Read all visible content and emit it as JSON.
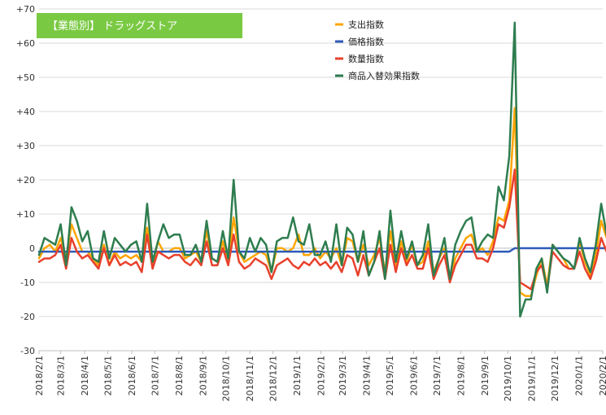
{
  "chart_data": {
    "type": "line",
    "title": "【業態別】 ドラッグストア",
    "xlabel": "",
    "ylabel": "",
    "ylim": [
      -30,
      70
    ],
    "yticks": [
      -30,
      -20,
      -10,
      0,
      10,
      20,
      30,
      40,
      50,
      60,
      70
    ],
    "ytick_labels": [
      "-30",
      "-20",
      "-10",
      "0",
      "+10",
      "+20",
      "+30",
      "+40",
      "+50",
      "+60",
      "+70"
    ],
    "grid": true,
    "legend_position": "top-center",
    "x_tick_labels": [
      "2018/2/1",
      "2018/3/1",
      "2018/4/1",
      "2018/5/1",
      "2018/6/1",
      "2018/7/1",
      "2018/8/1",
      "2018/9/1",
      "2018/10/1",
      "2018/11/1",
      "2018/12/1",
      "2019/1/1",
      "2019/2/1",
      "2019/3/1",
      "2019/4/1",
      "2019/5/1",
      "2019/6/1",
      "2019/7/1",
      "2019/8/1",
      "2019/9/1",
      "2019/10/1",
      "2019/11/1",
      "2019/12/1",
      "2020/1/1",
      "2020/2/1"
    ],
    "x_dates": [
      "2018/2/1",
      "2018/2/8",
      "2018/2/15",
      "2018/2/22",
      "2018/3/1",
      "2018/3/8",
      "2018/3/15",
      "2018/3/22",
      "2018/3/29",
      "2018/4/5",
      "2018/4/12",
      "2018/4/19",
      "2018/4/26",
      "2018/5/3",
      "2018/5/10",
      "2018/5/17",
      "2018/5/24",
      "2018/5/31",
      "2018/6/7",
      "2018/6/14",
      "2018/6/21",
      "2018/6/28",
      "2018/7/5",
      "2018/7/12",
      "2018/7/19",
      "2018/7/26",
      "2018/8/2",
      "2018/8/9",
      "2018/8/16",
      "2018/8/23",
      "2018/8/30",
      "2018/9/6",
      "2018/9/13",
      "2018/9/20",
      "2018/9/27",
      "2018/10/4",
      "2018/10/11",
      "2018/10/18",
      "2018/10/25",
      "2018/11/1",
      "2018/11/8",
      "2018/11/15",
      "2018/11/22",
      "2018/11/29",
      "2018/12/6",
      "2018/12/13",
      "2018/12/20",
      "2018/12/27",
      "2019/1/3",
      "2019/1/10",
      "2019/1/17",
      "2019/1/24",
      "2019/1/31",
      "2019/2/7",
      "2019/2/14",
      "2019/2/21",
      "2019/2/28",
      "2019/3/7",
      "2019/3/14",
      "2019/3/21",
      "2019/3/28",
      "2019/4/4",
      "2019/4/11",
      "2019/4/18",
      "2019/4/25",
      "2019/5/2",
      "2019/5/9",
      "2019/5/16",
      "2019/5/23",
      "2019/5/30",
      "2019/6/6",
      "2019/6/13",
      "2019/6/20",
      "2019/6/27",
      "2019/7/4",
      "2019/7/11",
      "2019/7/18",
      "2019/7/25",
      "2019/8/1",
      "2019/8/8",
      "2019/8/15",
      "2019/8/22",
      "2019/8/29",
      "2019/9/5",
      "2019/9/12",
      "2019/9/19",
      "2019/9/26",
      "2019/10/3",
      "2019/10/10",
      "2019/10/17",
      "2019/10/24",
      "2019/10/31",
      "2019/11/7",
      "2019/11/14",
      "2019/11/21",
      "2019/11/28",
      "2019/12/5",
      "2019/12/12",
      "2019/12/19",
      "2019/12/26",
      "2020/1/2",
      "2020/1/9",
      "2020/1/16",
      "2020/1/23",
      "2020/1/30",
      "2020/2/6"
    ],
    "series": [
      {
        "name": "支出指数",
        "color": "#FFA500",
        "values": [
          -3,
          0,
          1,
          -1,
          3,
          -3,
          7,
          3,
          -1,
          -1,
          -3,
          -5,
          1,
          -5,
          -1,
          -3,
          -2,
          -3,
          -2,
          -4,
          6,
          -5,
          2,
          -1,
          -1,
          0,
          0,
          -3,
          -2,
          -1,
          -4,
          5,
          -3,
          -4,
          2,
          -4,
          9,
          -1,
          -4,
          -3,
          -2,
          -1,
          -2,
          -7,
          0,
          0,
          -1,
          0,
          4,
          -2,
          -2,
          0,
          -3,
          -1,
          -3,
          0,
          -5,
          3,
          2,
          -4,
          1,
          -5,
          -2,
          3,
          -7,
          5,
          -5,
          2,
          -4,
          1,
          -5,
          -4,
          2,
          -7,
          -3,
          0,
          -9,
          -3,
          0,
          3,
          4,
          -1,
          0,
          -2,
          2,
          9,
          8,
          14,
          41,
          -13,
          -14,
          -14,
          -8,
          -3,
          -11,
          1,
          -1,
          -3,
          -6,
          -6,
          2,
          -4,
          -8,
          -2,
          8,
          3
        ]
      },
      {
        "name": "価格指数",
        "color": "#2E5BB8",
        "values": [
          -1,
          -1,
          -1,
          -1,
          -1,
          -1,
          -1,
          -1,
          -1,
          -1,
          -1,
          -1,
          -1,
          -1,
          -1,
          -1,
          -1,
          -1,
          -1,
          -1,
          -1,
          -1,
          -1,
          -1,
          -1,
          -1,
          -1,
          -1,
          -1,
          -1,
          -1,
          -1,
          -1,
          -1,
          -1,
          -1,
          -1,
          -1,
          -1,
          -1,
          -1,
          -1,
          -1,
          -1,
          -1,
          -1,
          -1,
          -1,
          -1,
          -1,
          -1,
          -1,
          -1,
          -1,
          -1,
          -1,
          -1,
          -1,
          -1,
          -1,
          -1,
          -1,
          -1,
          -1,
          -1,
          -1,
          -1,
          -1,
          -1,
          -1,
          -1,
          -1,
          -1,
          -1,
          -1,
          -1,
          -1,
          -1,
          -1,
          -1,
          -1,
          -1,
          -1,
          -1,
          -1,
          -1,
          -1,
          -1,
          0,
          0,
          0,
          0,
          0,
          0,
          0,
          0,
          0,
          0,
          0,
          0,
          0,
          0,
          0,
          0,
          0,
          0
        ]
      },
      {
        "name": "数量指数",
        "color": "#E8412C",
        "values": [
          -4,
          -3,
          -3,
          -2,
          1,
          -6,
          3,
          -1,
          -3,
          -2,
          -4,
          -6,
          0,
          -5,
          -2,
          -5,
          -4,
          -5,
          -4,
          -7,
          4,
          -6,
          -1,
          -2,
          -3,
          -2,
          -2,
          -4,
          -5,
          -3,
          -5,
          2,
          -5,
          -5,
          0,
          -5,
          4,
          -4,
          -6,
          -5,
          -3,
          -4,
          -5,
          -9,
          -5,
          -4,
          -3,
          -5,
          -6,
          -4,
          -5,
          -3,
          -5,
          -4,
          -6,
          -4,
          -7,
          -2,
          -3,
          -8,
          -2,
          -8,
          -4,
          0,
          -9,
          1,
          -7,
          0,
          -5,
          -2,
          -6,
          -6,
          0,
          -9,
          -5,
          -2,
          -10,
          -5,
          -2,
          1,
          1,
          -3,
          -3,
          -4,
          0,
          7,
          6,
          12,
          23,
          -10,
          -11,
          -12,
          -7,
          -5,
          -12,
          -1,
          -3,
          -5,
          -6,
          -6,
          -1,
          -6,
          -9,
          -4,
          3,
          -1
        ]
      },
      {
        "name": "商品入替効果指数",
        "color": "#2E7D4F",
        "values": [
          -2,
          3,
          2,
          1,
          7,
          -5,
          12,
          8,
          2,
          5,
          -3,
          -4,
          5,
          -3,
          3,
          1,
          -1,
          1,
          2,
          -4,
          13,
          -4,
          2,
          7,
          3,
          4,
          4,
          -2,
          -2,
          1,
          -4,
          8,
          -3,
          -4,
          5,
          -3,
          20,
          -1,
          -3,
          3,
          -1,
          3,
          1,
          -7,
          2,
          3,
          3,
          9,
          2,
          1,
          7,
          -2,
          -2,
          2,
          -4,
          7,
          -5,
          6,
          4,
          -4,
          5,
          -8,
          -4,
          5,
          -9,
          11,
          -4,
          5,
          -3,
          2,
          -5,
          -2,
          7,
          -8,
          -3,
          3,
          -9,
          1,
          5,
          8,
          9,
          -1,
          2,
          4,
          3,
          18,
          14,
          27,
          66,
          -20,
          -15,
          -15,
          -6,
          -3,
          -13,
          1,
          -1,
          -3,
          -4,
          -6,
          3,
          -3,
          -7,
          1,
          13,
          4
        ]
      }
    ]
  }
}
